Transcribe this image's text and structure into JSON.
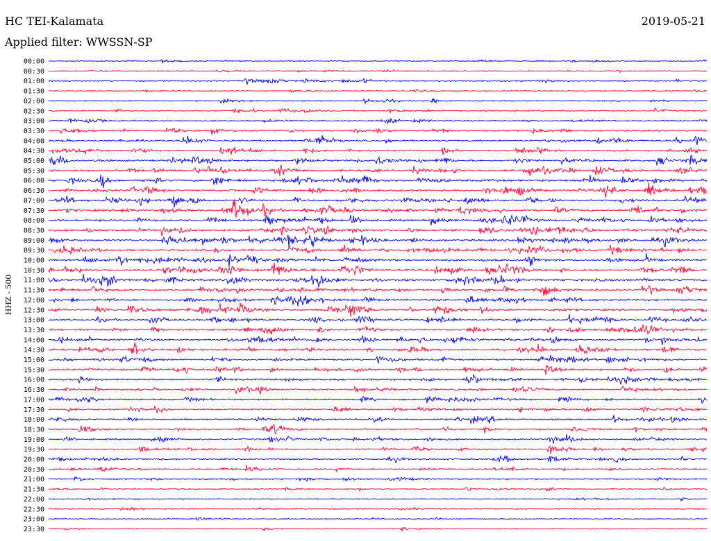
{
  "header": {
    "station": "HC TEI-Kalamata",
    "filter": "Applied filter: WWSSN-SP",
    "date": "2019-05-21"
  },
  "colors": {
    "blue": "#0000ee",
    "red": "#ff0033"
  },
  "chart_data": {
    "type": "helicorder",
    "title": "HC TEI-Kalamata",
    "subtitle": "Applied filter: WWSSN-SP",
    "date": "2019-05-21",
    "ylabel": "HHZ - 500",
    "row_labels": [
      "00:00",
      "00:30",
      "01:00",
      "01:30",
      "02:00",
      "02:30",
      "03:00",
      "03:30",
      "04:00",
      "04:30",
      "05:00",
      "05:30",
      "06:00",
      "06:30",
      "07:00",
      "07:30",
      "08:00",
      "08:30",
      "09:00",
      "09:30",
      "10:00",
      "10:30",
      "11:00",
      "11:30",
      "12:00",
      "12:30",
      "13:00",
      "13:30",
      "14:00",
      "14:30",
      "15:00",
      "15:30",
      "16:00",
      "16:30",
      "17:00",
      "17:30",
      "18:00",
      "18:30",
      "19:00",
      "19:30",
      "20:00",
      "20:30",
      "21:00",
      "21:30",
      "22:00",
      "22:30",
      "23:00",
      "23:30"
    ],
    "row_colors": [
      "blue",
      "red"
    ],
    "activity": [
      0.5,
      0.7,
      0.8,
      0.4,
      0.9,
      1.1,
      1.3,
      1.6,
      1.8,
      2.0,
      2.4,
      2.8,
      2.8,
      2.6,
      2.6,
      2.8,
      2.7,
      2.7,
      2.8,
      2.8,
      2.7,
      2.8,
      2.8,
      2.7,
      2.6,
      2.6,
      2.6,
      2.4,
      2.4,
      2.4,
      2.3,
      2.3,
      2.1,
      2.0,
      1.8,
      1.8,
      1.7,
      1.8,
      1.6,
      1.5,
      1.4,
      1.2,
      1.1,
      0.9,
      0.5,
      0.5,
      0.4,
      0.4
    ],
    "events": [
      {
        "row": 2,
        "time_min": 9.0,
        "amp": 3.0
      },
      {
        "row": 2,
        "time_min": 22.3,
        "amp": 4.0
      },
      {
        "row": 18,
        "time_min": 5.2,
        "amp": 9.0
      },
      {
        "row": 38,
        "time_min": 22.8,
        "amp": 9.0
      },
      {
        "row": 39,
        "time_min": 22.8,
        "amp": 14.0
      },
      {
        "row": 40,
        "time_min": 22.8,
        "amp": 9.0
      },
      {
        "row": 41,
        "time_min": 9.0,
        "amp": 6.0
      },
      {
        "row": 21,
        "time_min": 12.0,
        "amp": 3.0
      },
      {
        "row": 10,
        "time_min": 11.2,
        "amp": 3.5
      },
      {
        "row": 8,
        "time_min": 23.4,
        "amp": 3.5
      }
    ]
  }
}
